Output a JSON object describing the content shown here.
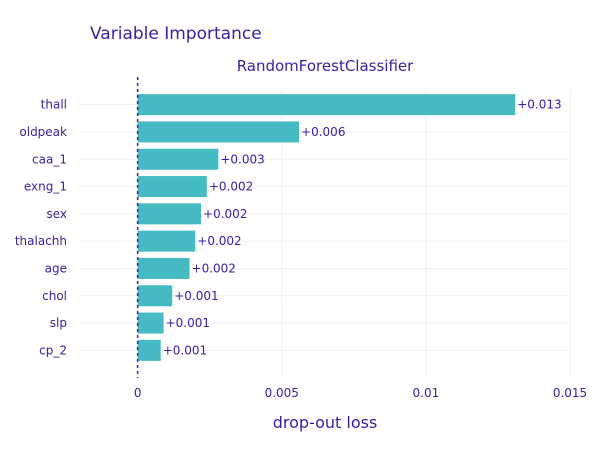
{
  "chart_data": {
    "type": "bar",
    "orientation": "horizontal",
    "title": "Variable Importance",
    "subtitle": "RandomForestClassifier",
    "xlabel": "drop-out loss",
    "ylabel": "",
    "xlim": [
      -0.002,
      0.015
    ],
    "x_ticks": [
      0,
      0.005,
      0.01,
      0.015
    ],
    "x_tick_labels": [
      "0",
      "0.005",
      "0.01",
      "0.015"
    ],
    "grid": true,
    "legend": "none",
    "baseline": 0,
    "bar_color": "#46bac2",
    "text_color": "#371ea3",
    "categories": [
      "thall",
      "oldpeak",
      "caa_1",
      "exng_1",
      "sex",
      "thalachh",
      "age",
      "chol",
      "slp",
      "cp_2"
    ],
    "values": [
      0.0131,
      0.0056,
      0.0028,
      0.0024,
      0.0022,
      0.002,
      0.0018,
      0.0012,
      0.0009,
      0.0008
    ],
    "value_labels": [
      "+0.013",
      "+0.006",
      "+0.003",
      "+0.002",
      "+0.002",
      "+0.002",
      "+0.002",
      "+0.001",
      "+0.001",
      "+0.001"
    ]
  }
}
